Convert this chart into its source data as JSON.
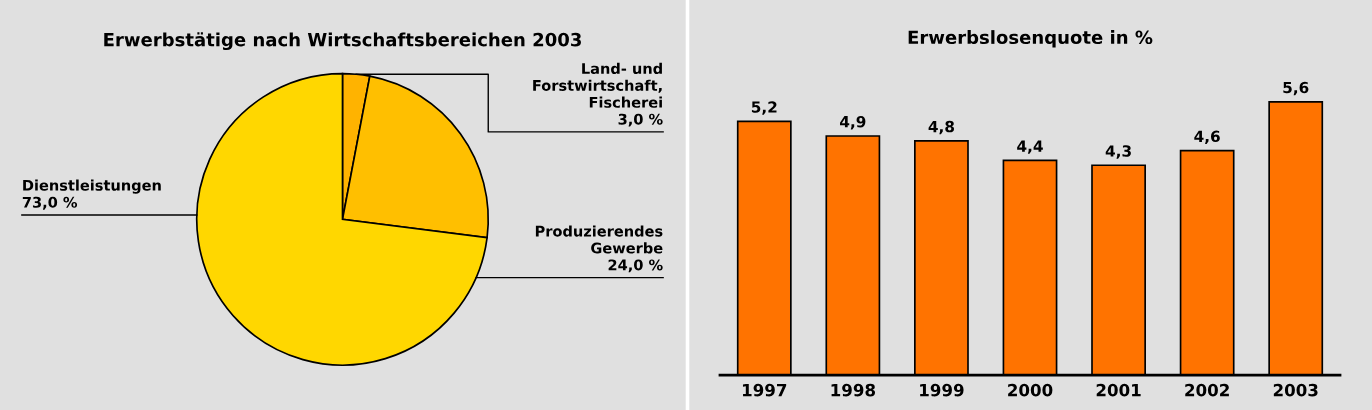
{
  "chart_data": [
    {
      "type": "pie",
      "title": "Erwerbstätige nach Wirtschaftsbereichen 2003",
      "categories": [
        "Land- und\nForstwirtschaft,\nFischerei",
        "Produzierendes\nGewerbe",
        "Dienstleistungen"
      ],
      "values": [
        3,
        24,
        73
      ],
      "colors": [
        "#ffb300",
        "#ffbf00",
        "#ffd700"
      ],
      "value_labels": [
        "3,0 %",
        "24,0 %",
        "73,0 %"
      ]
    },
    {
      "type": "bar",
      "title": "Erwerbslosenquote in %",
      "categories": [
        "1997",
        "1998",
        "1999",
        "2000",
        "2001",
        "2002",
        "2003"
      ],
      "values": [
        5.2,
        4.9,
        4.8,
        4.4,
        4.3,
        4.6,
        5.6
      ],
      "color": "#ff7300",
      "value_labels": [
        "5,2",
        "4,9",
        "4,8",
        "4,4",
        "4,3",
        "4,6",
        "5,6"
      ]
    }
  ]
}
